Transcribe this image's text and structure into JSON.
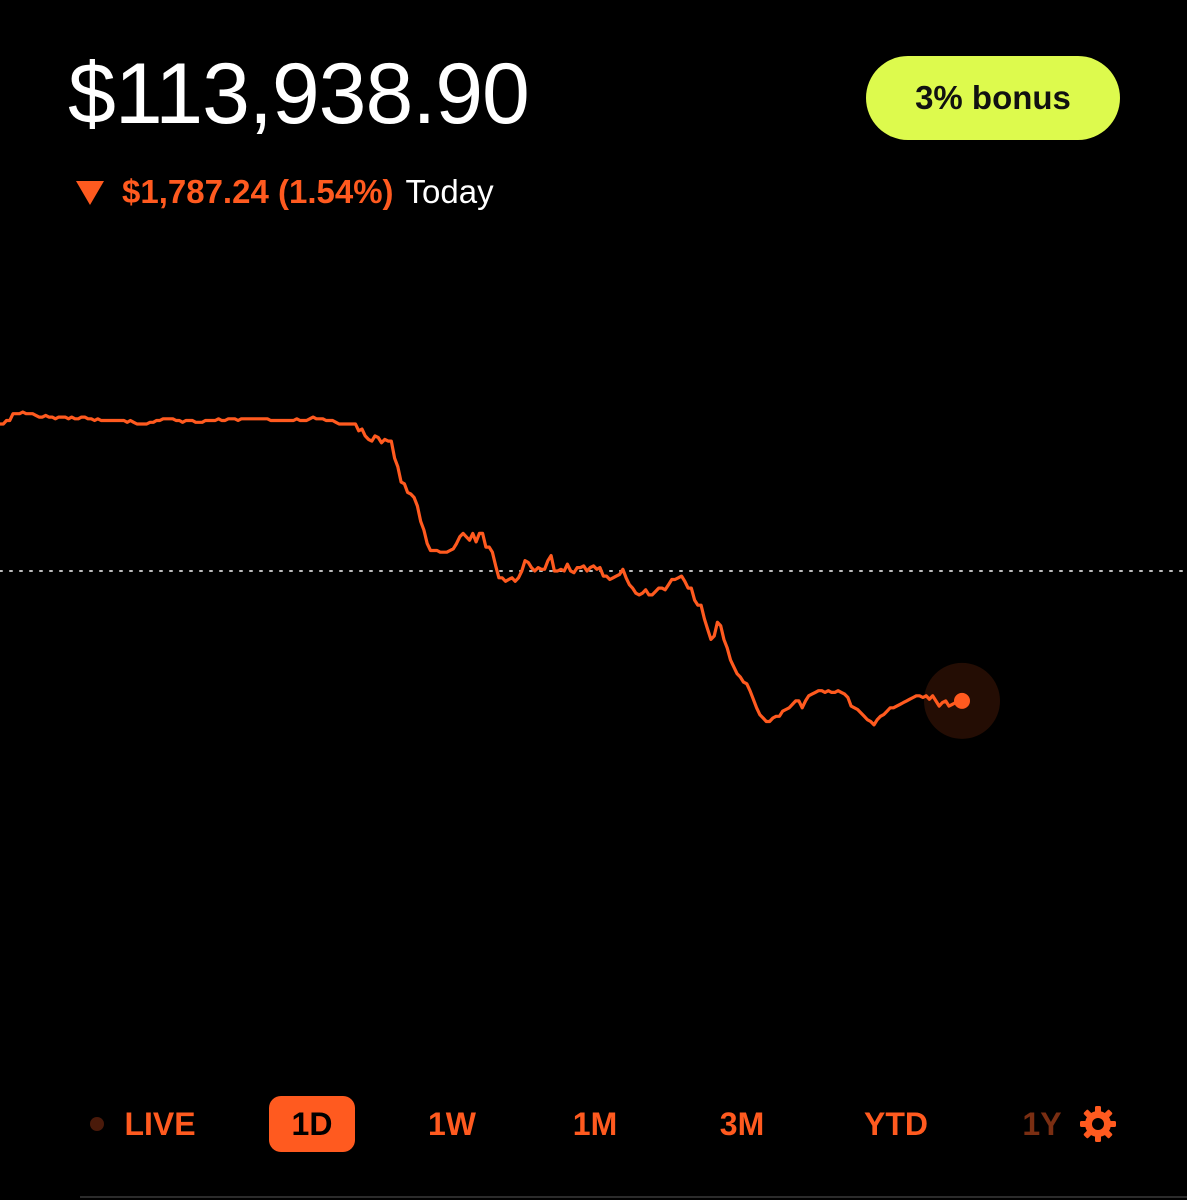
{
  "portfolio": {
    "balance": "$113,938.90",
    "change_amount": "$1,787.24 (1.54%)",
    "change_period": "Today",
    "change_direction": "down"
  },
  "bonus_button": {
    "label": "3% bonus"
  },
  "range_tabs": [
    {
      "label": "LIVE",
      "selected": false
    },
    {
      "label": "1D",
      "selected": true
    },
    {
      "label": "1W",
      "selected": false
    },
    {
      "label": "1M",
      "selected": false
    },
    {
      "label": "3M",
      "selected": false
    },
    {
      "label": "YTD",
      "selected": false
    },
    {
      "label": "1Y",
      "selected": false
    }
  ],
  "icons": {
    "settings": "gear-icon",
    "change_indicator": "triangle-down-icon"
  },
  "colors": {
    "accent": "#ff5a1f",
    "bonus": "#ddfa4d",
    "background": "#000000",
    "text": "#ffffff"
  },
  "chart_data": {
    "type": "line",
    "title": "",
    "xlabel": "",
    "ylabel": "",
    "reference_line": "previous close (dotted)",
    "series": [
      {
        "values": [
          0.86,
          0.86,
          0.88,
          0.88,
          0.92,
          0.92,
          0.92,
          0.93,
          0.92,
          0.92,
          0.92,
          0.91,
          0.9,
          0.9,
          0.91,
          0.9,
          0.9,
          0.89,
          0.9,
          0.9,
          0.9,
          0.89,
          0.9,
          0.89,
          0.89,
          0.9,
          0.9,
          0.89,
          0.89,
          0.88,
          0.89,
          0.88,
          0.88,
          0.88,
          0.88,
          0.88,
          0.88,
          0.88,
          0.88,
          0.87,
          0.88,
          0.87,
          0.86,
          0.86,
          0.86,
          0.86,
          0.87,
          0.87,
          0.88,
          0.88,
          0.89,
          0.89,
          0.89,
          0.89,
          0.88,
          0.88,
          0.87,
          0.88,
          0.88,
          0.88,
          0.87,
          0.87,
          0.87,
          0.88,
          0.88,
          0.88,
          0.88,
          0.89,
          0.88,
          0.88,
          0.89,
          0.89,
          0.89,
          0.88,
          0.89,
          0.89,
          0.89,
          0.89,
          0.89,
          0.89,
          0.89,
          0.89,
          0.89,
          0.88,
          0.88,
          0.88,
          0.88,
          0.88,
          0.88,
          0.88,
          0.88,
          0.89,
          0.88,
          0.88,
          0.88,
          0.89,
          0.9,
          0.89,
          0.89,
          0.89,
          0.88,
          0.88,
          0.88,
          0.87,
          0.86,
          0.86,
          0.86,
          0.86,
          0.86,
          0.86,
          0.82,
          0.83,
          0.79,
          0.77,
          0.76,
          0.79,
          0.78,
          0.75,
          0.77,
          0.76,
          0.76,
          0.66,
          0.61,
          0.52,
          0.51,
          0.46,
          0.45,
          0.43,
          0.38,
          0.29,
          0.24,
          0.16,
          0.12,
          0.12,
          0.12,
          0.11,
          0.11,
          0.11,
          0.12,
          0.13,
          0.16,
          0.2,
          0.22,
          0.2,
          0.18,
          0.22,
          0.17,
          0.22,
          0.22,
          0.14,
          0.14,
          0.11,
          0.03,
          -0.04,
          -0.04,
          -0.06,
          -0.05,
          -0.04,
          -0.06,
          -0.04,
          0.0,
          0.06,
          0.05,
          0.02,
          0.0,
          0.02,
          0.01,
          0.01,
          0.06,
          0.09,
          0.0,
          0.0,
          0.01,
          0.0,
          0.04,
          0.0,
          -0.01,
          0.02,
          0.02,
          0.03,
          0.0,
          0.02,
          0.03,
          0.01,
          0.02,
          -0.03,
          -0.03,
          -0.05,
          -0.04,
          -0.03,
          -0.02,
          0.01,
          -0.04,
          -0.08,
          -0.1,
          -0.13,
          -0.14,
          -0.13,
          -0.11,
          -0.14,
          -0.14,
          -0.12,
          -0.1,
          -0.1,
          -0.11,
          -0.08,
          -0.05,
          -0.05,
          -0.04,
          -0.03,
          -0.06,
          -0.1,
          -0.1,
          -0.17,
          -0.2,
          -0.2,
          -0.28,
          -0.34,
          -0.4,
          -0.38,
          -0.3,
          -0.32,
          -0.4,
          -0.45,
          -0.52,
          -0.56,
          -0.6,
          -0.62,
          -0.65,
          -0.66,
          -0.7,
          -0.75,
          -0.8,
          -0.84,
          -0.86,
          -0.88,
          -0.88,
          -0.86,
          -0.85,
          -0.85,
          -0.82,
          -0.81,
          -0.8,
          -0.78,
          -0.76,
          -0.76,
          -0.8,
          -0.76,
          -0.73,
          -0.72,
          -0.71,
          -0.7,
          -0.7,
          -0.71,
          -0.7,
          -0.71,
          -0.71,
          -0.7,
          -0.71,
          -0.72,
          -0.74,
          -0.79,
          -0.8,
          -0.81,
          -0.83,
          -0.85,
          -0.87,
          -0.88,
          -0.9,
          -0.87,
          -0.85,
          -0.84,
          -0.82,
          -0.8,
          -0.8,
          -0.79,
          -0.78,
          -0.77,
          -0.76,
          -0.75,
          -0.74,
          -0.73,
          -0.73,
          -0.74,
          -0.73,
          -0.75,
          -0.73,
          -0.76,
          -0.79,
          -0.77,
          -0.76,
          -0.79,
          -0.78,
          -0.77,
          -0.77,
          -0.76
        ]
      }
    ]
  }
}
